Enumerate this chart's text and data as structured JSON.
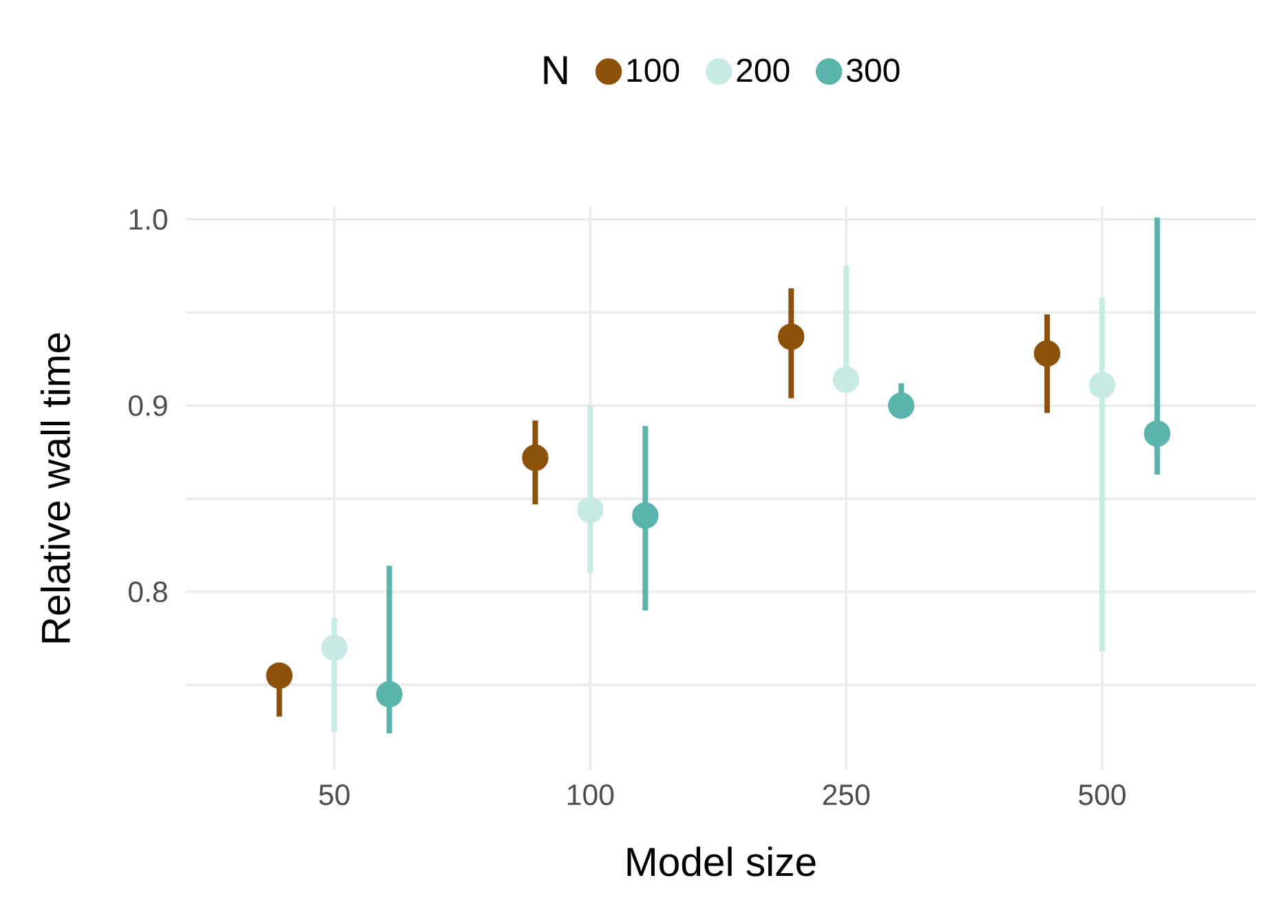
{
  "chart_data": {
    "type": "scatter",
    "xlabel": "Model size",
    "ylabel": "Relative wall time",
    "legend_title": "N",
    "categories": [
      "50",
      "100",
      "250",
      "500"
    ],
    "ylim": [
      0.704,
      1.007
    ],
    "yticks": [
      {
        "value": 0.75,
        "label": null
      },
      {
        "value": 0.8,
        "label": "0.8"
      },
      {
        "value": 0.85,
        "label": null
      },
      {
        "value": 0.9,
        "label": "0.9"
      },
      {
        "value": 0.95,
        "label": null
      },
      {
        "value": 1.0,
        "label": "1.0"
      }
    ],
    "series": [
      {
        "name": "100",
        "color": "#8c510a",
        "values": [
          0.755,
          0.872,
          0.937,
          0.928
        ],
        "errors": [
          [
            0.733,
            0.755
          ],
          [
            0.847,
            0.892
          ],
          [
            0.904,
            0.963
          ],
          [
            0.896,
            0.949
          ]
        ]
      },
      {
        "name": "200",
        "color": "#c7eae5",
        "values": [
          0.77,
          0.844,
          0.914,
          0.911
        ],
        "errors": [
          [
            0.725,
            0.786
          ],
          [
            0.81,
            0.9
          ],
          [
            0.907,
            0.975
          ],
          [
            0.768,
            0.958
          ]
        ]
      },
      {
        "name": "300",
        "color": "#5ab4ac",
        "values": [
          0.745,
          0.841,
          0.9,
          0.885
        ],
        "errors": [
          [
            0.724,
            0.814
          ],
          [
            0.79,
            0.889
          ],
          [
            0.9,
            0.912
          ],
          [
            0.863,
            1.001
          ]
        ]
      }
    ],
    "grid": true,
    "legend": "top",
    "marker": "circle"
  }
}
